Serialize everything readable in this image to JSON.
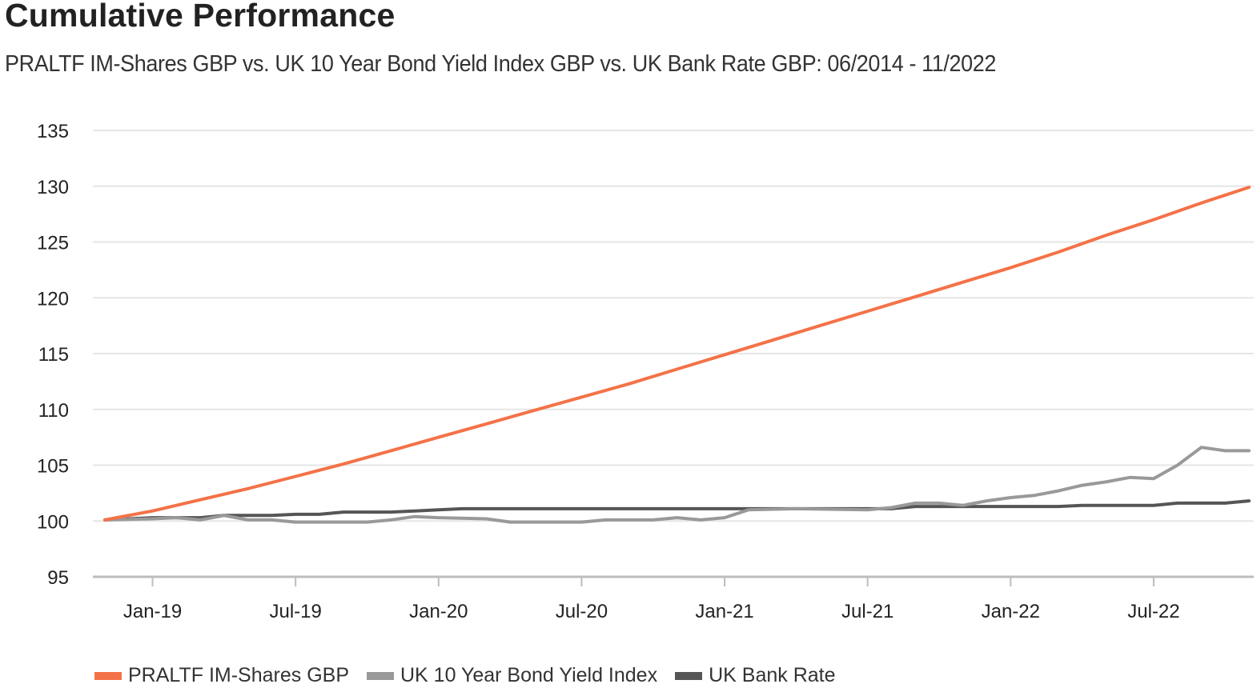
{
  "header": {
    "title": "Cumulative Performance",
    "subtitle": "PRALTF IM-Shares GBP vs. UK 10 Year Bond Yield Index GBP vs. UK Bank Rate GBP: 06/2014 - 11/2022"
  },
  "legend": {
    "items": [
      {
        "label": "PRALTF IM-Shares GBP",
        "color": "#f47248"
      },
      {
        "label": "UK 10 Year Bond Yield Index",
        "color": "#999999"
      },
      {
        "label": "UK Bank Rate",
        "color": "#555555"
      }
    ]
  },
  "chart_data": {
    "type": "line",
    "title": "Cumulative Performance",
    "subtitle": "PRALTF IM-Shares GBP vs. UK 10 Year Bond Yield Index GBP vs. UK Bank Rate GBP: 06/2014 - 11/2022",
    "x_range": [
      "2018-11",
      "2022-11"
    ],
    "ylim": [
      95,
      135
    ],
    "yticks": [
      95,
      100,
      105,
      110,
      115,
      120,
      125,
      130,
      135
    ],
    "xticks": [
      {
        "date": "2019-01",
        "label": "Jan-19"
      },
      {
        "date": "2019-07",
        "label": "Jul-19"
      },
      {
        "date": "2020-01",
        "label": "Jan-20"
      },
      {
        "date": "2020-07",
        "label": "Jul-20"
      },
      {
        "date": "2021-01",
        "label": "Jan-21"
      },
      {
        "date": "2021-07",
        "label": "Jul-21"
      },
      {
        "date": "2022-01",
        "label": "Jan-22"
      },
      {
        "date": "2022-07",
        "label": "Jul-22"
      }
    ],
    "grid": true,
    "legend_position": "bottom",
    "series": [
      {
        "name": "PRALTF IM-Shares GBP",
        "color": "#f47248",
        "points": [
          [
            "2018-11",
            100.1
          ],
          [
            "2019-01",
            100.9
          ],
          [
            "2019-03",
            101.9
          ],
          [
            "2019-05",
            102.9
          ],
          [
            "2019-07",
            104.0
          ],
          [
            "2019-09",
            105.1
          ],
          [
            "2019-11",
            106.3
          ],
          [
            "2020-01",
            107.5
          ],
          [
            "2020-03",
            108.7
          ],
          [
            "2020-05",
            109.9
          ],
          [
            "2020-07",
            111.1
          ],
          [
            "2020-09",
            112.3
          ],
          [
            "2020-11",
            113.6
          ],
          [
            "2021-01",
            114.9
          ],
          [
            "2021-03",
            116.2
          ],
          [
            "2021-05",
            117.5
          ],
          [
            "2021-07",
            118.8
          ],
          [
            "2021-09",
            120.1
          ],
          [
            "2021-11",
            121.4
          ],
          [
            "2022-01",
            122.7
          ],
          [
            "2022-03",
            124.1
          ],
          [
            "2022-05",
            125.6
          ],
          [
            "2022-07",
            127.0
          ],
          [
            "2022-09",
            128.5
          ],
          [
            "2022-11",
            129.9
          ]
        ]
      },
      {
        "name": "UK 10 Year Bond Yield Index",
        "color": "#999999",
        "points": [
          [
            "2018-11",
            100.1
          ],
          [
            "2019-01",
            100.2
          ],
          [
            "2019-02",
            100.3
          ],
          [
            "2019-03",
            100.1
          ],
          [
            "2019-04",
            100.5
          ],
          [
            "2019-05",
            100.1
          ],
          [
            "2019-06",
            100.1
          ],
          [
            "2019-07",
            99.9
          ],
          [
            "2019-09",
            99.9
          ],
          [
            "2019-10",
            99.9
          ],
          [
            "2019-11",
            100.1
          ],
          [
            "2019-12",
            100.4
          ],
          [
            "2020-01",
            100.3
          ],
          [
            "2020-03",
            100.2
          ],
          [
            "2020-04",
            99.9
          ],
          [
            "2020-07",
            99.9
          ],
          [
            "2020-08",
            100.1
          ],
          [
            "2020-10",
            100.1
          ],
          [
            "2020-11",
            100.3
          ],
          [
            "2020-12",
            100.1
          ],
          [
            "2021-01",
            100.3
          ],
          [
            "2021-02",
            101.0
          ],
          [
            "2021-04",
            101.1
          ],
          [
            "2021-07",
            101.0
          ],
          [
            "2021-08",
            101.2
          ],
          [
            "2021-09",
            101.6
          ],
          [
            "2021-10",
            101.6
          ],
          [
            "2021-11",
            101.4
          ],
          [
            "2021-12",
            101.8
          ],
          [
            "2022-01",
            102.1
          ],
          [
            "2022-02",
            102.3
          ],
          [
            "2022-03",
            102.7
          ],
          [
            "2022-04",
            103.2
          ],
          [
            "2022-05",
            103.5
          ],
          [
            "2022-06",
            103.9
          ],
          [
            "2022-07",
            103.8
          ],
          [
            "2022-08",
            105.0
          ],
          [
            "2022-09",
            106.6
          ],
          [
            "2022-10",
            106.3
          ],
          [
            "2022-11",
            106.3
          ]
        ]
      },
      {
        "name": "UK Bank Rate",
        "color": "#555555",
        "points": [
          [
            "2018-11",
            100.1
          ],
          [
            "2019-01",
            100.3
          ],
          [
            "2019-03",
            100.3
          ],
          [
            "2019-04",
            100.5
          ],
          [
            "2019-06",
            100.5
          ],
          [
            "2019-07",
            100.6
          ],
          [
            "2019-08",
            100.6
          ],
          [
            "2019-09",
            100.8
          ],
          [
            "2019-11",
            100.8
          ],
          [
            "2019-12",
            100.9
          ],
          [
            "2020-01",
            101.0
          ],
          [
            "2020-02",
            101.1
          ],
          [
            "2021-08",
            101.1
          ],
          [
            "2021-09",
            101.3
          ],
          [
            "2022-03",
            101.3
          ],
          [
            "2022-04",
            101.4
          ],
          [
            "2022-07",
            101.4
          ],
          [
            "2022-08",
            101.6
          ],
          [
            "2022-10",
            101.6
          ],
          [
            "2022-11",
            101.8
          ]
        ]
      }
    ]
  }
}
